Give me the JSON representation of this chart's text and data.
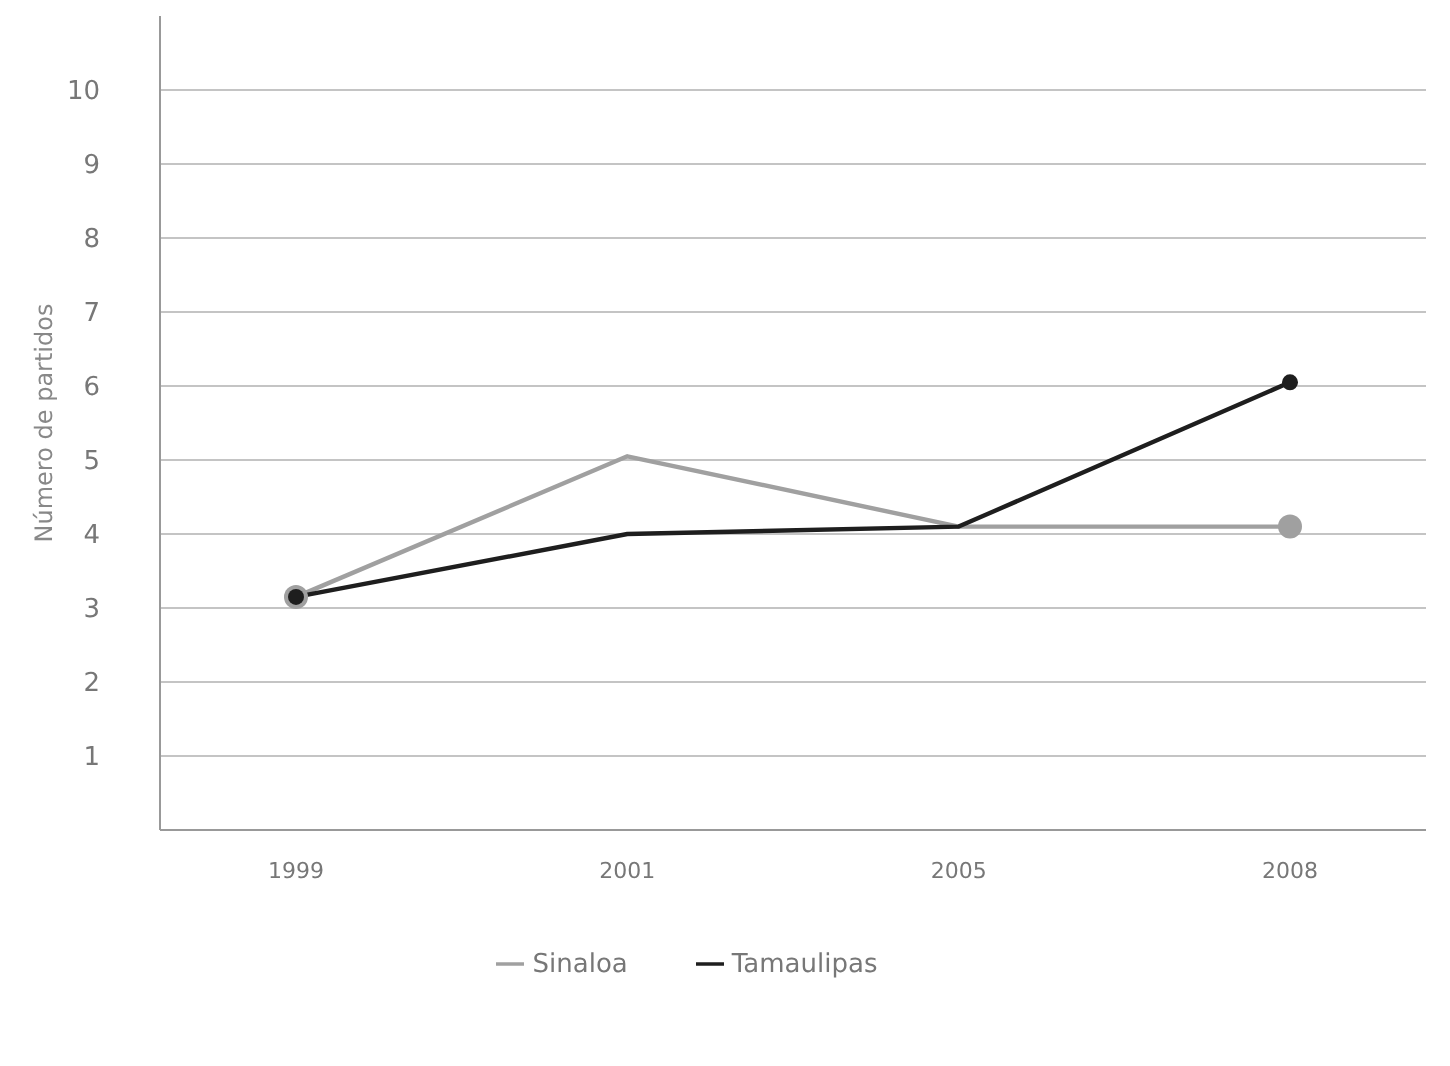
{
  "chart_data": {
    "type": "line",
    "ylabel": "Número de partidos",
    "categories": [
      "1999",
      "2001",
      "2005",
      "2008"
    ],
    "series": [
      {
        "name": "Sinaloa",
        "color": "#a0a0a0",
        "values": [
          3.15,
          5.05,
          4.1,
          4.1
        ]
      },
      {
        "name": "Tamaulipas",
        "color": "#1e1e1e",
        "values": [
          3.15,
          4.0,
          4.1,
          6.05
        ]
      }
    ],
    "ylim": [
      0,
      11
    ],
    "yticks": [
      {
        "value": 0,
        "label": null
      },
      1,
      2,
      3,
      4,
      5,
      6,
      7,
      8,
      9,
      10
    ],
    "grid": "y",
    "legend": "bottom",
    "marker": "circle",
    "line_style": "solid"
  }
}
